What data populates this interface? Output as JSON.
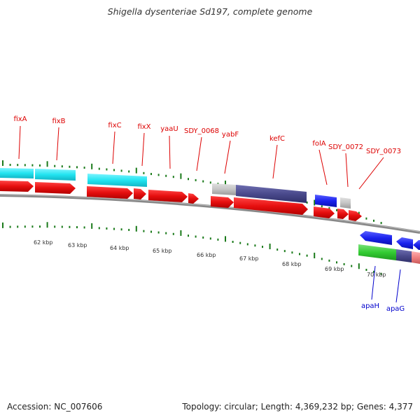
{
  "title": "Shigella dysenteriae Sd197, complete genome",
  "footer": {
    "accession": "Accession: NC_007606",
    "summary": "Topology: circular; Length: 4,369,232 bp; Genes: 4,377"
  },
  "axis_labels": [
    "62 kbp",
    "63 kbp",
    "64 kbp",
    "65 kbp",
    "66 kbp",
    "67 kbp",
    "68 kbp",
    "69 kbp",
    "70 kbp"
  ],
  "gene_labels_top": [
    "fixA",
    "fixB",
    "fixC",
    "fixX",
    "yaaU",
    "SDY_0068",
    "yabF",
    "kefC",
    "folA",
    "SDY_0072",
    "SDY_0073"
  ],
  "gene_labels_bottom": [
    "apaH",
    "apaG"
  ],
  "colors": {
    "label_top": "#dd0000",
    "label_bottom": "#0000cc",
    "tick": "#1a7a1a",
    "backbone": "#888888",
    "gene_red": "#ee1111",
    "cog_cyan": "#22e4f0",
    "cog_gray": "#c0c0c0",
    "cog_navy": "#4a4a8c",
    "cog_blue": "#1a22ee",
    "cog_green": "#33cc33",
    "cog_pink": "#f08080"
  }
}
